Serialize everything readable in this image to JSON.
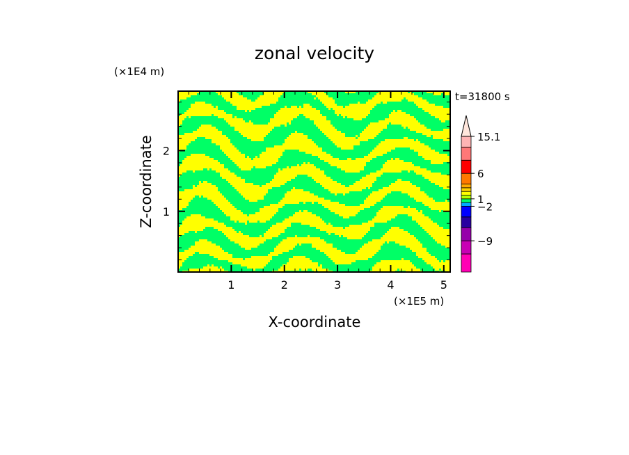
{
  "chart_data": {
    "type": "heatmap",
    "title": "zonal velocity",
    "xlabel": "X-coordinate",
    "ylabel": "Z-coordinate",
    "x_scale_label": "(×1E5 m)",
    "y_scale_label": "(×1E4 m)",
    "time_label": "t=31800 s",
    "xlim": [
      0,
      5.12
    ],
    "ylim": [
      0,
      2.98
    ],
    "x_ticks": [
      {
        "value": 1,
        "label": "1"
      },
      {
        "value": 2,
        "label": "2"
      },
      {
        "value": 3,
        "label": "3"
      },
      {
        "value": 4,
        "label": "4"
      },
      {
        "value": 5,
        "label": "5"
      }
    ],
    "y_ticks": [
      {
        "value": 1,
        "label": "1"
      },
      {
        "value": 2,
        "label": "2"
      }
    ],
    "field_colors": {
      "positive": "#ffff00",
      "negative": "#00ff66"
    },
    "colorbar": {
      "bands": [
        {
          "color": "#ff00b4"
        },
        {
          "color": "#c800b4"
        },
        {
          "color": "#9600aa"
        },
        {
          "color": "#2800a0"
        },
        {
          "color": "#0000ff"
        },
        {
          "color": "#00aaff"
        },
        {
          "color": "#00ff66"
        },
        {
          "color": "#b4ff00"
        },
        {
          "color": "#ffff00"
        },
        {
          "color": "#ffd200"
        },
        {
          "color": "#ffaa00"
        },
        {
          "color": "#ff7800"
        },
        {
          "color": "#ff0000"
        },
        {
          "color": "#ff7878"
        },
        {
          "color": "#ffb4b4"
        }
      ],
      "labels": [
        {
          "value": 15.1,
          "text": "15.1"
        },
        {
          "value": 6,
          "text": "6"
        },
        {
          "value": 1,
          "text": "1"
        },
        {
          "value": -2,
          "text": "−2"
        },
        {
          "value": -9,
          "text": "−9"
        }
      ]
    }
  }
}
